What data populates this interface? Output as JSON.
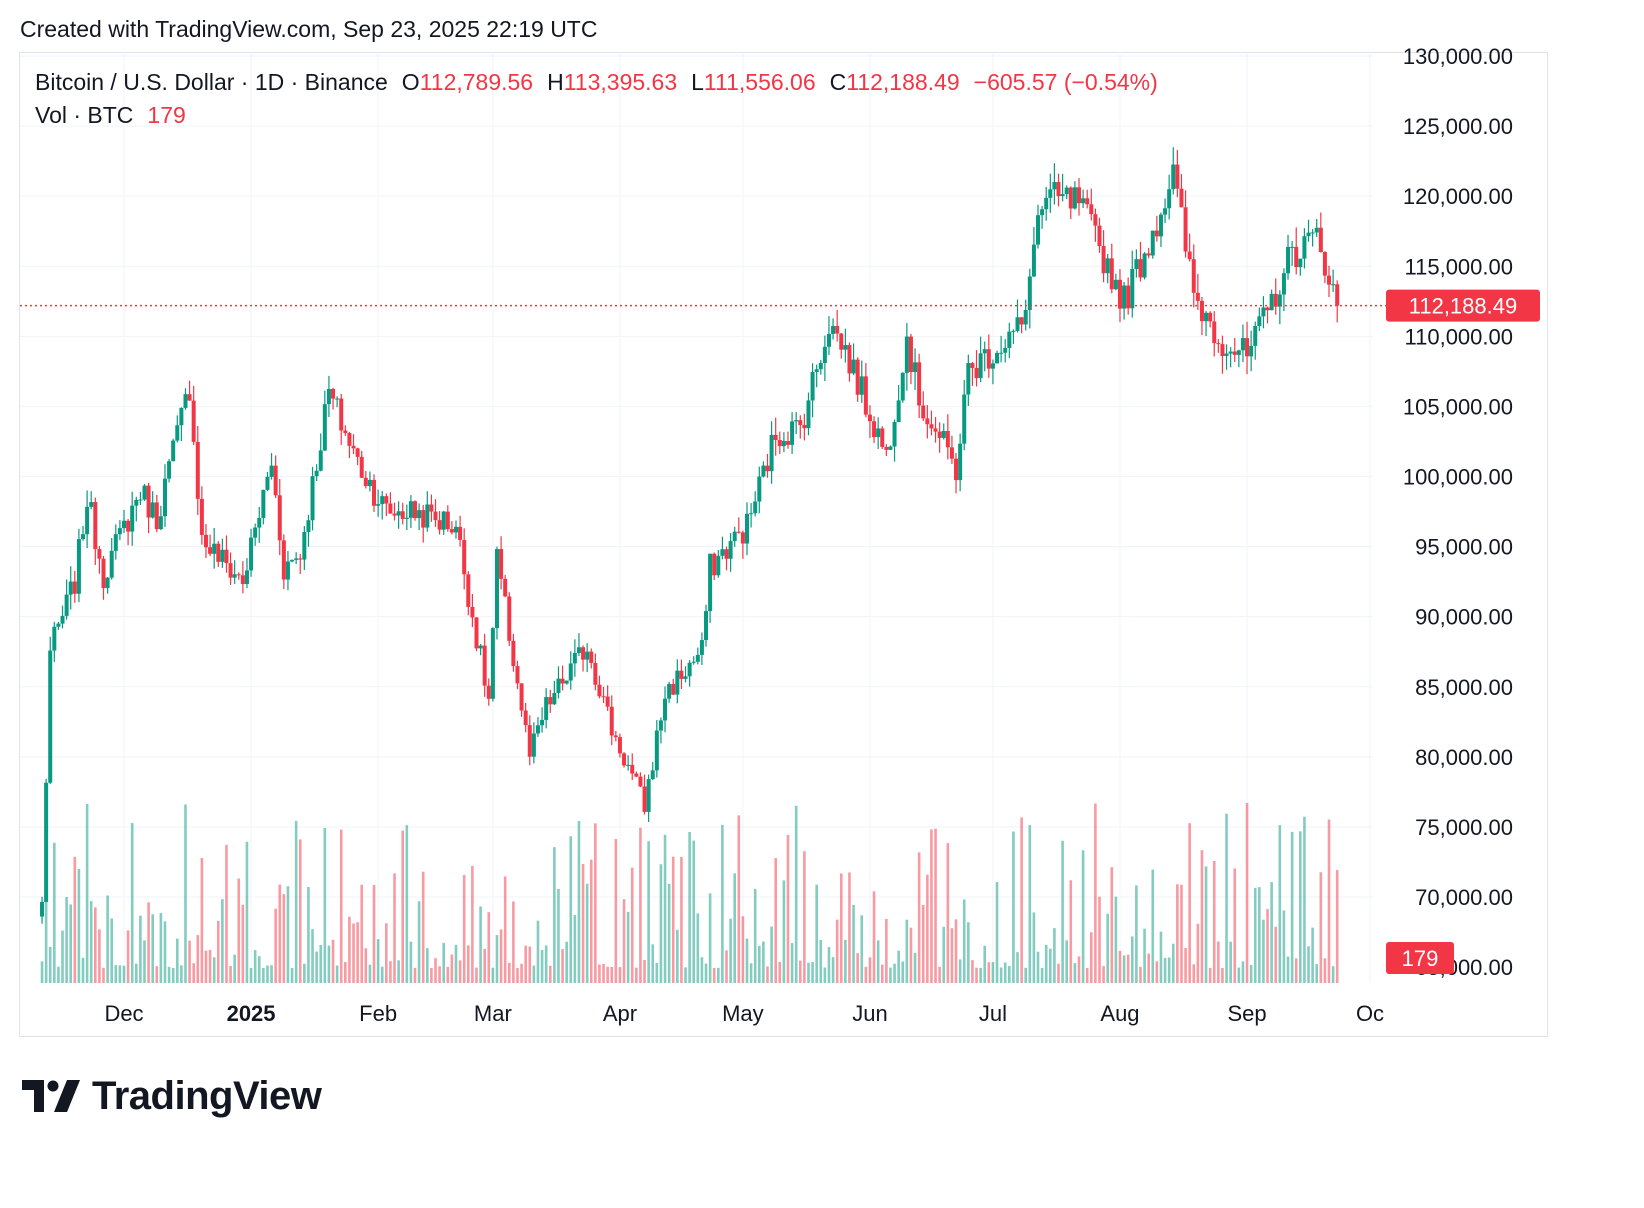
{
  "caption": "Created with TradingView.com, Sep 23, 2025 22:19 UTC",
  "legend": {
    "symbol": "Bitcoin / U.S. Dollar · 1D · Binance",
    "o_label": "O",
    "o_value": "112,789.56",
    "h_label": "H",
    "h_value": "113,395.63",
    "l_label": "L",
    "l_value": "111,556.06",
    "c_label": "C",
    "c_value": "112,188.49",
    "change": "−605.57 (−0.54%)",
    "vol_label": "Vol · BTC",
    "vol_value": "179"
  },
  "logo": {
    "text": "TradingView",
    "icon": "tradingview-logo-icon"
  },
  "colors": {
    "up": "#089981",
    "down": "#f23645",
    "grid": "#f0f3fa",
    "text": "#131722"
  },
  "chart_data": {
    "type": "candlestick",
    "interval": "1D",
    "y_axis_side": "right",
    "y_ticks": [
      "130,000.00",
      "125,000.00",
      "120,000.00",
      "115,000.00",
      "110,000.00",
      "105,000.00",
      "100,000.00",
      "95,000.00",
      "90,000.00",
      "85,000.00",
      "80,000.00",
      "75,000.00",
      "70,000.00"
    ],
    "x_ticks": [
      {
        "label": "Dec",
        "date": "2024-12-01",
        "bold": false
      },
      {
        "label": "2025",
        "date": "2025-01-01",
        "bold": true
      },
      {
        "label": "Feb",
        "date": "2025-02-01",
        "bold": false
      },
      {
        "label": "Mar",
        "date": "2025-03-01",
        "bold": false
      },
      {
        "label": "Apr",
        "date": "2025-04-01",
        "bold": false
      },
      {
        "label": "May",
        "date": "2025-05-01",
        "bold": false
      },
      {
        "label": "Jun",
        "date": "2025-06-01",
        "bold": false
      },
      {
        "label": "Jul",
        "date": "2025-07-01",
        "bold": false
      },
      {
        "label": "Aug",
        "date": "2025-08-01",
        "bold": false
      },
      {
        "label": "Sep",
        "date": "2025-09-01",
        "bold": false
      },
      {
        "label": "Oc",
        "date": "2025-10-01",
        "bold": false
      }
    ],
    "x_range": [
      "2024-11-11",
      "2025-09-23"
    ],
    "last_price": 112188.49,
    "last_price_label": "112,188.49",
    "last_volume_label": "179",
    "price_path": [
      [
        "2024-11-11",
        69500
      ],
      [
        "2024-11-13",
        87500
      ],
      [
        "2024-11-19",
        92500
      ],
      [
        "2024-11-22",
        98500
      ],
      [
        "2024-11-26",
        93000
      ],
      [
        "2024-12-05",
        99000
      ],
      [
        "2024-12-09",
        97000
      ],
      [
        "2024-12-17",
        106500
      ],
      [
        "2024-12-20",
        95500
      ],
      [
        "2024-12-30",
        92500
      ],
      [
        "2025-01-06",
        101000
      ],
      [
        "2025-01-09",
        93500
      ],
      [
        "2025-01-13",
        94500
      ],
      [
        "2025-01-20",
        106000
      ],
      [
        "2025-01-27",
        101000
      ],
      [
        "2025-02-03",
        97500
      ],
      [
        "2025-02-10",
        97500
      ],
      [
        "2025-02-20",
        96500
      ],
      [
        "2025-02-25",
        88500
      ],
      [
        "2025-02-28",
        84000
      ],
      [
        "2025-03-02",
        94000
      ],
      [
        "2025-03-10",
        80000
      ],
      [
        "2025-03-14",
        83500
      ],
      [
        "2025-03-24",
        88000
      ],
      [
        "2025-03-30",
        82000
      ],
      [
        "2025-04-07",
        76500
      ],
      [
        "2025-04-12",
        84500
      ],
      [
        "2025-04-21",
        87500
      ],
      [
        "2025-04-23",
        93500
      ],
      [
        "2025-05-02",
        96500
      ],
      [
        "2025-05-09",
        103000
      ],
      [
        "2025-05-15",
        103500
      ],
      [
        "2025-05-22",
        111000
      ],
      [
        "2025-05-26",
        109000
      ],
      [
        "2025-06-05",
        101500
      ],
      [
        "2025-06-10",
        110000
      ],
      [
        "2025-06-13",
        105500
      ],
      [
        "2025-06-22",
        100500
      ],
      [
        "2025-06-25",
        107500
      ],
      [
        "2025-07-03",
        109500
      ],
      [
        "2025-07-09",
        111000
      ],
      [
        "2025-07-11",
        117500
      ],
      [
        "2025-07-14",
        119800
      ],
      [
        "2025-07-22",
        119500
      ],
      [
        "2025-08-02",
        112500
      ],
      [
        "2025-08-09",
        117500
      ],
      [
        "2025-08-14",
        121500
      ],
      [
        "2025-08-19",
        113000
      ],
      [
        "2025-08-25",
        110000
      ],
      [
        "2025-09-01",
        108500
      ],
      [
        "2025-09-05",
        111000
      ],
      [
        "2025-09-12",
        116000
      ],
      [
        "2025-09-18",
        117000
      ],
      [
        "2025-09-20",
        115500
      ],
      [
        "2025-09-23",
        112188
      ]
    ]
  }
}
